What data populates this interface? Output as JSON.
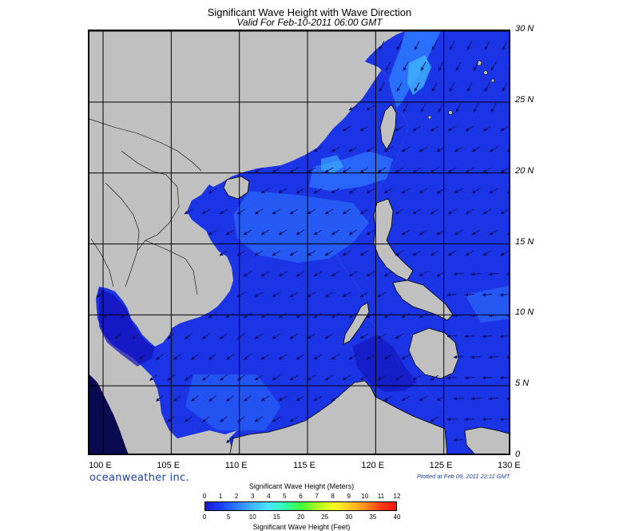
{
  "title": "Significant Wave Height with Wave Direction",
  "subtitle": "Valid For Feb-10-2011 06:00 GMT",
  "brand": "oceanweather inc.",
  "plotted": "Plotted at Feb 09, 2011 22:11 GMT",
  "map": {
    "lon_range": [
      99,
      130
    ],
    "lat_range": [
      0,
      30
    ],
    "lat_labels": [
      "30 N",
      "25 N",
      "20 N",
      "15 N",
      "10 N",
      "5 N",
      "0"
    ],
    "lon_labels": [
      "100 E",
      "105 E",
      "110 E",
      "115 E",
      "120 E",
      "125 E",
      "130 E"
    ],
    "land_color": "#c0c0c0",
    "sea_color": "#1a34e6",
    "wave_direction": "from northeast toward southwest"
  },
  "colorbar": {
    "title_meters": "Significant Wave Height (Meters)",
    "title_feet": "Significant Wave Height (Feet)",
    "meters_ticks": [
      "0",
      "1",
      "2",
      "3",
      "4",
      "5",
      "6",
      "7",
      "8",
      "9",
      "10",
      "11",
      "12"
    ],
    "feet_ticks": [
      "0",
      "5",
      "10",
      "15",
      "20",
      "25",
      "30",
      "35",
      "40"
    ],
    "colors": [
      "#1a1ad0",
      "#1a40ff",
      "#2f7bff",
      "#3fb7ff",
      "#48e6ff",
      "#30ffb0",
      "#40ff40",
      "#a8ff20",
      "#f0ff20",
      "#ffd020",
      "#ff9020",
      "#ff4010",
      "#ff1010"
    ]
  }
}
